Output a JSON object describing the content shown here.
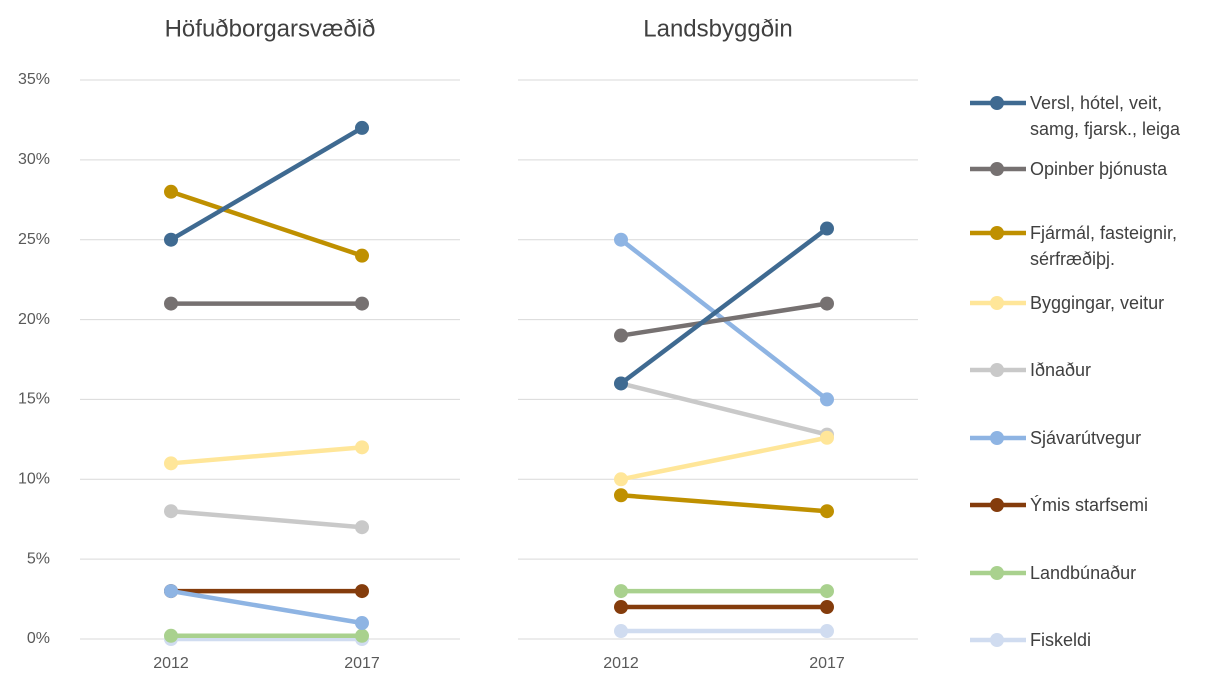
{
  "chart_data": [
    {
      "type": "line",
      "title": "Höfuðborgarsvæðið",
      "categories": [
        "2012",
        "2017"
      ],
      "ylim": [
        0,
        35
      ],
      "yticks": [
        {
          "value": 0,
          "label": "0%"
        },
        {
          "value": 5,
          "label": "5%"
        },
        {
          "value": 10,
          "label": "10%"
        },
        {
          "value": 15,
          "label": "15%"
        },
        {
          "value": 20,
          "label": "20%"
        },
        {
          "value": 25,
          "label": "25%"
        },
        {
          "value": 30,
          "label": "30%"
        },
        {
          "value": 35,
          "label": "35%"
        }
      ],
      "grid": true,
      "series": [
        {
          "name": "Versl, hótel, veit, samg, fjarsk., leiga",
          "color": "#3f6a91",
          "values": [
            25,
            32
          ]
        },
        {
          "name": "Opinber þjónusta",
          "color": "#767171",
          "values": [
            21,
            21
          ]
        },
        {
          "name": "Fjármál, fasteignir, sérfræðiþj.",
          "color": "#bf9000",
          "values": [
            28,
            24
          ]
        },
        {
          "name": "Byggingar, veitur",
          "color": "#ffe699",
          "values": [
            11,
            12
          ]
        },
        {
          "name": "Iðnaður",
          "color": "#c9c9c9",
          "values": [
            8,
            7
          ]
        },
        {
          "name": "Sjávarútvegur",
          "color": "#8eb4e3",
          "values": [
            3,
            1
          ]
        },
        {
          "name": "Ýmis starfsemi",
          "color": "#843c0c",
          "values": [
            3,
            3
          ]
        },
        {
          "name": "Landbúnaður",
          "color": "#a9d18e",
          "values": [
            0.2,
            0.2
          ]
        },
        {
          "name": "Fiskeldi",
          "color": "#d0dcf0",
          "values": [
            0,
            0
          ]
        }
      ]
    },
    {
      "type": "line",
      "title": "Landsbyggðin",
      "categories": [
        "2012",
        "2017"
      ],
      "ylim": [
        0,
        35
      ],
      "yticks": [
        0,
        5,
        10,
        15,
        20,
        25,
        30,
        35
      ],
      "grid": true,
      "series": [
        {
          "name": "Versl, hótel, veit, samg, fjarsk., leiga",
          "color": "#3f6a91",
          "values": [
            16,
            25.7
          ]
        },
        {
          "name": "Opinber þjónusta",
          "color": "#767171",
          "values": [
            19,
            21
          ]
        },
        {
          "name": "Fjármál, fasteignir, sérfræðiþj.",
          "color": "#bf9000",
          "values": [
            9,
            8
          ]
        },
        {
          "name": "Byggingar, veitur",
          "color": "#ffe699",
          "values": [
            10,
            12.6
          ]
        },
        {
          "name": "Iðnaður",
          "color": "#c9c9c9",
          "values": [
            16,
            12.8
          ]
        },
        {
          "name": "Sjávarútvegur",
          "color": "#8eb4e3",
          "values": [
            25,
            15
          ]
        },
        {
          "name": "Ýmis starfsemi",
          "color": "#843c0c",
          "values": [
            2,
            2
          ]
        },
        {
          "name": "Landbúnaður",
          "color": "#a9d18e",
          "values": [
            3,
            3
          ]
        },
        {
          "name": "Fiskeldi",
          "color": "#d0dcf0",
          "values": [
            0.5,
            0.5
          ]
        }
      ]
    }
  ]
}
